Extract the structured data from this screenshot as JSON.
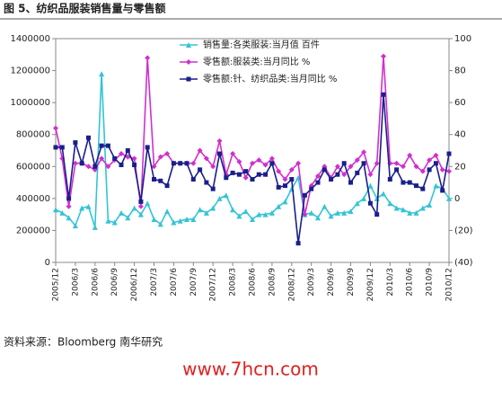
{
  "chart_data": {
    "type": "line",
    "title": "图 5、纺织品服装销售量与零售额",
    "categories": [
      "2005/12",
      null,
      null,
      "2006/3",
      null,
      null,
      "2006/6",
      null,
      null,
      "2006/9",
      null,
      null,
      "2006/12",
      null,
      null,
      "2007/3",
      null,
      null,
      "2007/6",
      null,
      null,
      "2007/9",
      null,
      null,
      "2007/12",
      null,
      null,
      "2008/3",
      null,
      null,
      "2008/6",
      null,
      null,
      "2008/9",
      null,
      null,
      "2008/12",
      null,
      null,
      "2009/3",
      null,
      null,
      "2009/6",
      null,
      null,
      "2009/9",
      null,
      null,
      "2009/12",
      null,
      null,
      "2010/3",
      null,
      null,
      "2010/6",
      null,
      null,
      "2010/9",
      null,
      null,
      "2010/12"
    ],
    "series": [
      {
        "name": "销售量:各类服装:当月值 百件",
        "color": "#33c4d6",
        "marker": "triangle",
        "values": [
          330000,
          310000,
          280000,
          230000,
          340000,
          350000,
          220000,
          1180000,
          260000,
          250000,
          310000,
          280000,
          340000,
          300000,
          370000,
          270000,
          240000,
          320000,
          250000,
          260000,
          270000,
          270000,
          330000,
          310000,
          340000,
          400000,
          420000,
          330000,
          290000,
          320000,
          270000,
          300000,
          300000,
          310000,
          350000,
          380000,
          460000,
          530000,
          300000,
          310000,
          280000,
          350000,
          290000,
          310000,
          310000,
          320000,
          370000,
          400000,
          480000,
          400000,
          430000,
          370000,
          340000,
          330000,
          310000,
          310000,
          340000,
          360000,
          480000,
          460000,
          400000
        ]
      },
      {
        "name": "零售额:服装类:当月同比 %",
        "color": "#d12fcf",
        "marker": "diamond",
        "axis": "y2",
        "values": [
          44,
          25,
          -5,
          22,
          22,
          20,
          18,
          25,
          20,
          24,
          28,
          26,
          25,
          -5,
          88,
          20,
          26,
          28,
          22,
          22,
          22,
          22,
          30,
          25,
          20,
          36,
          15,
          28,
          23,
          13,
          22,
          24,
          21,
          25,
          17,
          12,
          18,
          22,
          -10,
          8,
          14,
          20,
          13,
          20,
          15,
          20,
          24,
          29,
          15,
          22,
          89,
          22,
          22,
          20,
          27,
          20,
          17,
          24,
          27,
          18,
          17
        ]
      },
      {
        "name": "零售额:针、纺织品类:当月同比 %",
        "color": "#1a1f8c",
        "marker": "square",
        "axis": "y2",
        "values": [
          32,
          32,
          0,
          35,
          22,
          38,
          20,
          33,
          33,
          25,
          21,
          30,
          21,
          -2,
          32,
          12,
          11,
          8,
          22,
          22,
          22,
          12,
          18,
          10,
          6,
          28,
          13,
          16,
          15,
          17,
          12,
          15,
          15,
          22,
          7,
          8,
          12,
          -28,
          2,
          6,
          10,
          18,
          12,
          15,
          22,
          10,
          16,
          22,
          -3,
          -10,
          65,
          12,
          18,
          10,
          10,
          8,
          6,
          18,
          22,
          5,
          28
        ]
      }
    ],
    "ylim": [
      0,
      1400000
    ],
    "yticks": [
      0,
      200000,
      400000,
      600000,
      800000,
      1000000,
      1200000,
      1400000
    ],
    "y2lim": [
      -40,
      100
    ],
    "y2ticks": [
      {
        "value": -40,
        "label": "(40)"
      },
      {
        "value": -20,
        "label": "(20)"
      },
      0,
      20,
      40,
      60,
      80,
      100
    ],
    "grid": false,
    "legend": "top"
  },
  "source": "资料来源：Bloomberg 南华研究",
  "watermark": "www.7hcn.com"
}
